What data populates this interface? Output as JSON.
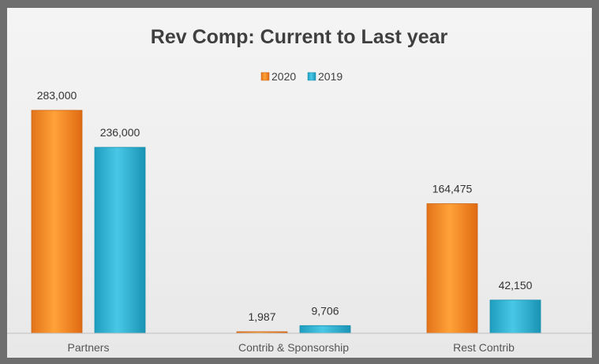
{
  "chart_data": {
    "type": "bar",
    "title": "Rev Comp: Current to Last year",
    "categories": [
      "Partners",
      "Contrib & Sponsorship",
      "Rest Contrib"
    ],
    "series": [
      {
        "name": "2020",
        "values": [
          283000,
          1987,
          164475
        ],
        "color": "#f28c1e"
      },
      {
        "name": "2019",
        "values": [
          236000,
          9706,
          42150
        ],
        "color": "#2fb3d3"
      }
    ],
    "data_labels": [
      [
        "283,000",
        "1,987",
        "164,475"
      ],
      [
        "236,000",
        "9,706",
        "42,150"
      ]
    ],
    "ylim": [
      0,
      300000
    ],
    "grid": false,
    "legend_position": "top-center",
    "xlabel": "",
    "ylabel": ""
  }
}
